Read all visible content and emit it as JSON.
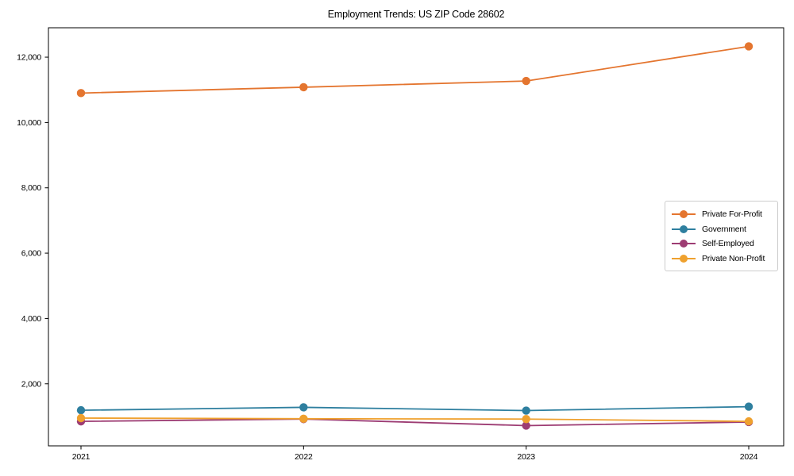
{
  "chart_data": {
    "type": "line",
    "title": "Employment Trends: US ZIP Code 28602",
    "x_categories": [
      "2021",
      "2022",
      "2023",
      "2024"
    ],
    "series": [
      {
        "name": "Private For-Profit",
        "color": "#e4752f",
        "values": [
          10900,
          11080,
          11270,
          12330
        ]
      },
      {
        "name": "Government",
        "color": "#2e7f9f",
        "values": [
          1190,
          1280,
          1180,
          1300
        ]
      },
      {
        "name": "Self-Employed",
        "color": "#9d3c73",
        "values": [
          850,
          920,
          720,
          830
        ]
      },
      {
        "name": "Private Non-Profit",
        "color": "#efa12e",
        "values": [
          950,
          930,
          920,
          850
        ]
      }
    ],
    "y_ticks": [
      {
        "value": 2000,
        "label": "2,000"
      },
      {
        "value": 4000,
        "label": "4,000"
      },
      {
        "value": 6000,
        "label": "6,000"
      },
      {
        "value": 8000,
        "label": "8,000"
      },
      {
        "value": 10000,
        "label": "10,000"
      },
      {
        "value": 12000,
        "label": "12,000"
      }
    ],
    "ylim": [
      100,
      12900
    ],
    "xlabel": "",
    "ylabel": "",
    "grid": false,
    "legend_position": "center-right",
    "marker": "circle",
    "axis_color": "#000000"
  }
}
